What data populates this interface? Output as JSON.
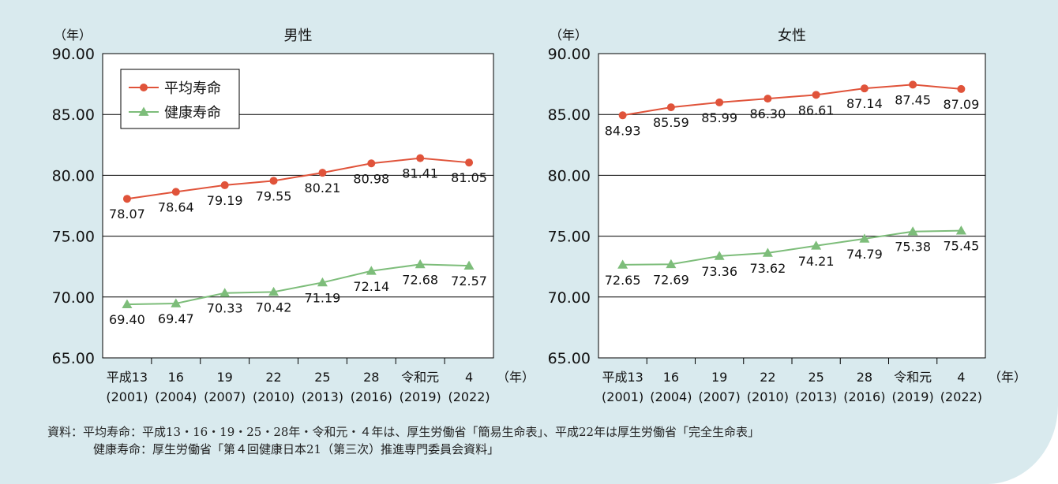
{
  "source": {
    "line1": "資料：平均寿命：平成13・16・19・25・28年・令和元・４年は、厚生労働省「簡易生命表」、平成22年は厚生労働省「完全生命表」",
    "line2": "健康寿命：厚生労働省「第４回健康日本21（第三次）推進専門委員会資料」"
  },
  "colors": {
    "life": "#e0533a",
    "health": "#7dbd7a",
    "grid": "#000000"
  },
  "chart_data": [
    {
      "type": "line",
      "title": "男性",
      "ylabel": "（年）",
      "xunit": "（年）",
      "ylim": [
        65,
        90
      ],
      "yticks": [
        "90.00",
        "85.00",
        "80.00",
        "75.00",
        "70.00",
        "65.00"
      ],
      "categories": [
        {
          "era": "平成13",
          "year": "(2001)"
        },
        {
          "era": "16",
          "year": "(2004)"
        },
        {
          "era": "19",
          "year": "(2007)"
        },
        {
          "era": "22",
          "year": "(2010)"
        },
        {
          "era": "25",
          "year": "(2013)"
        },
        {
          "era": "28",
          "year": "(2016)"
        },
        {
          "era": "令和元",
          "year": "(2019)"
        },
        {
          "era": "4",
          "year": "(2022)"
        }
      ],
      "legend": {
        "position": "top-left"
      },
      "series": [
        {
          "name": "平均寿命",
          "marker": "circle",
          "values": [
            78.07,
            78.64,
            79.19,
            79.55,
            80.21,
            80.98,
            81.41,
            81.05
          ],
          "labels": [
            "78.07",
            "78.64",
            "79.19",
            "79.55",
            "80.21",
            "80.98",
            "81.41",
            "81.05"
          ]
        },
        {
          "name": "健康寿命",
          "marker": "triangle",
          "values": [
            69.4,
            69.47,
            70.33,
            70.42,
            71.19,
            72.14,
            72.68,
            72.57
          ],
          "labels": [
            "69.40",
            "69.47",
            "70.33",
            "70.42",
            "71.19",
            "72.14",
            "72.68",
            "72.57"
          ]
        }
      ]
    },
    {
      "type": "line",
      "title": "女性",
      "ylabel": "（年）",
      "xunit": "（年）",
      "ylim": [
        65,
        90
      ],
      "yticks": [
        "90.00",
        "85.00",
        "80.00",
        "75.00",
        "70.00",
        "65.00"
      ],
      "categories": [
        {
          "era": "平成13",
          "year": "(2001)"
        },
        {
          "era": "16",
          "year": "(2004)"
        },
        {
          "era": "19",
          "year": "(2007)"
        },
        {
          "era": "22",
          "year": "(2010)"
        },
        {
          "era": "25",
          "year": "(2013)"
        },
        {
          "era": "28",
          "year": "(2016)"
        },
        {
          "era": "令和元",
          "year": "(2019)"
        },
        {
          "era": "4",
          "year": "(2022)"
        }
      ],
      "series": [
        {
          "marker": "circle",
          "values": [
            84.93,
            85.59,
            85.99,
            86.3,
            86.61,
            87.14,
            87.45,
            87.09
          ],
          "labels": [
            "84.93",
            "85.59",
            "85.99",
            "86.30",
            "86.61",
            "87.14",
            "87.45",
            "87.09"
          ]
        },
        {
          "marker": "triangle",
          "values": [
            72.65,
            72.69,
            73.36,
            73.62,
            74.21,
            74.79,
            75.38,
            75.45
          ],
          "labels": [
            "72.65",
            "72.69",
            "73.36",
            "73.62",
            "74.21",
            "74.79",
            "75.38",
            "75.45"
          ]
        }
      ]
    }
  ]
}
